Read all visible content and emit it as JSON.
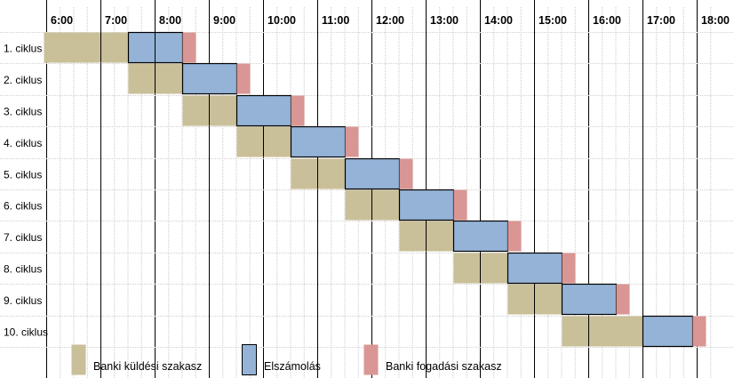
{
  "chart_data": {
    "type": "gantt",
    "x_ticks": [
      "6:00",
      "7:00",
      "8:00",
      "9:00",
      "10:00",
      "11:00",
      "12:00",
      "13:00",
      "14:00",
      "15:00",
      "16:00",
      "17:00",
      "18:00"
    ],
    "x_range": [
      6.0,
      18.3
    ],
    "grid": "vertical lines every 0.25 h, solid line every full hour",
    "rows": [
      "1. ciklus",
      "2. ciklus",
      "3. ciklus",
      "4. ciklus",
      "5. ciklus",
      "6. ciklus",
      "7. ciklus",
      "8. ciklus",
      "9. ciklus",
      "10. ciklus"
    ],
    "legend_position": "bottom",
    "series": [
      {
        "name": "Banki küldési szakasz",
        "color": "#c9bf99",
        "intervals": [
          [
            5.95,
            7.5
          ],
          [
            7.5,
            8.5
          ],
          [
            8.5,
            9.5
          ],
          [
            9.5,
            10.5
          ],
          [
            10.5,
            11.5
          ],
          [
            11.5,
            12.5
          ],
          [
            12.5,
            13.5
          ],
          [
            13.5,
            14.5
          ],
          [
            14.5,
            15.5
          ],
          [
            15.5,
            17.0
          ]
        ],
        "dividers": [
          7.0,
          8.0,
          9.0,
          10.0,
          11.0,
          12.0,
          13.0,
          14.0,
          15.0,
          16.0
        ]
      },
      {
        "name": "Elszámolás",
        "color": "#95b3d7",
        "intervals": [
          [
            7.5,
            8.5
          ],
          [
            8.5,
            9.5
          ],
          [
            9.5,
            10.5
          ],
          [
            10.5,
            11.5
          ],
          [
            11.5,
            12.5
          ],
          [
            12.5,
            13.5
          ],
          [
            13.5,
            14.5
          ],
          [
            14.5,
            15.5
          ],
          [
            15.5,
            16.5
          ],
          [
            17.0,
            17.92
          ]
        ],
        "dividers": [
          8.0
        ]
      },
      {
        "name": "Banki fogadási szakasz",
        "color": "#d99694",
        "intervals": [
          [
            8.5,
            8.75
          ],
          [
            9.5,
            9.75
          ],
          [
            10.5,
            10.75
          ],
          [
            11.5,
            11.75
          ],
          [
            12.5,
            12.75
          ],
          [
            13.5,
            13.75
          ],
          [
            14.5,
            14.75
          ],
          [
            15.5,
            15.75
          ],
          [
            16.5,
            16.75
          ],
          [
            17.92,
            18.17
          ]
        ]
      }
    ]
  }
}
